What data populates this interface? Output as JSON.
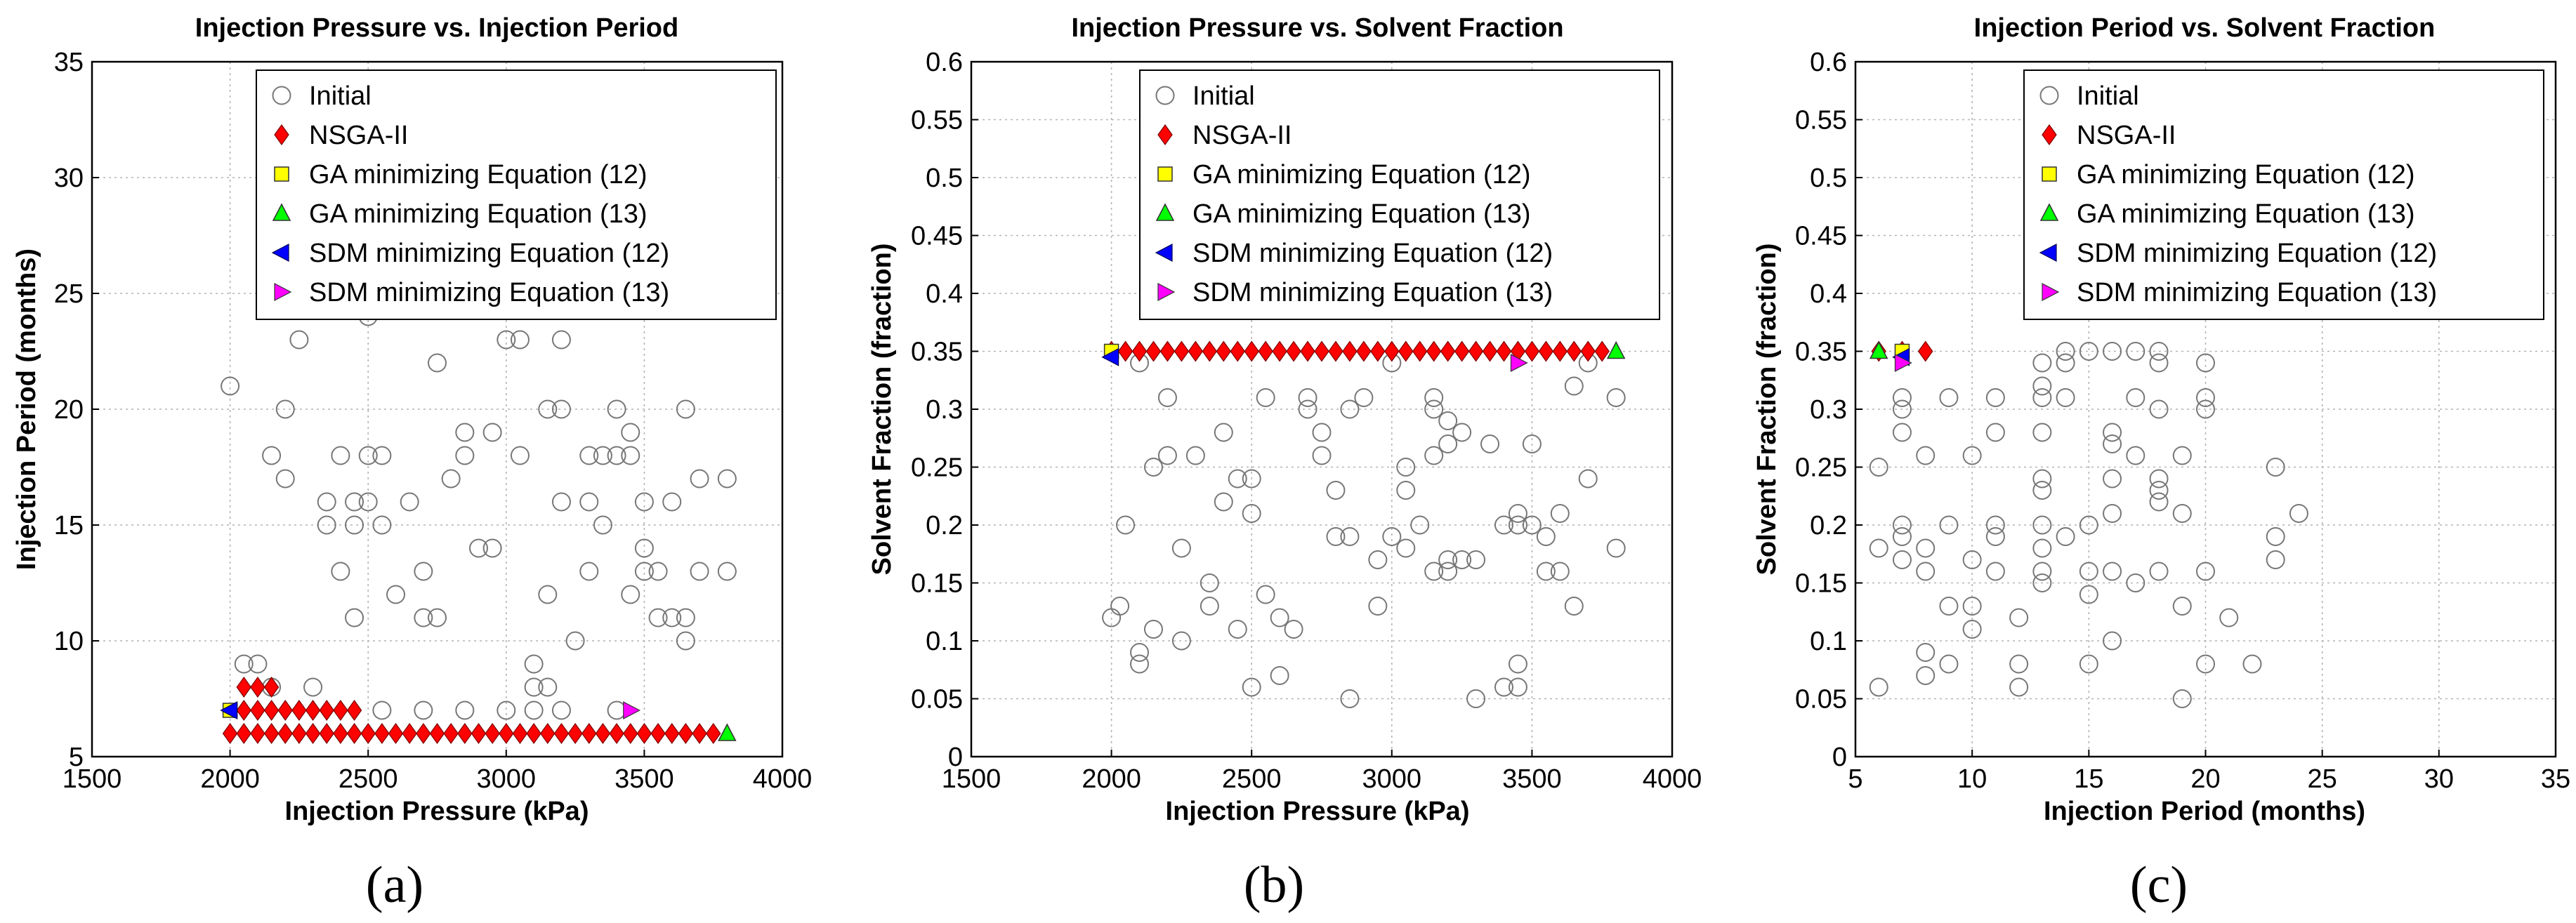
{
  "chart_data": [
    {
      "type": "scatter",
      "title": "Injection Pressure vs. Injection Period",
      "xlabel": "Injection Pressure (kPa)",
      "ylabel": "Injection Period (months)",
      "xlim": [
        1500,
        4000
      ],
      "ylim": [
        5,
        35
      ],
      "xticks": [
        "1500",
        "2000",
        "2500",
        "3000",
        "3500",
        "4000"
      ],
      "yticks": [
        "5",
        "10",
        "15",
        "20",
        "25",
        "30",
        "35"
      ],
      "panel_label": "(a)",
      "series": [
        {
          "name": "Initial",
          "x": [
            2000,
            2050,
            2100,
            2150,
            2150,
            2200,
            2200,
            2250,
            2300,
            2350,
            2350,
            2400,
            2400,
            2450,
            2450,
            2450,
            2500,
            2500,
            2500,
            2550,
            2550,
            2600,
            2650,
            2700,
            2700,
            2750,
            2750,
            2800,
            2850,
            2850,
            2900,
            2950,
            2950,
            3000,
            3050,
            3050,
            3100,
            3100,
            3150,
            3150,
            3150,
            3200,
            3200,
            3200,
            3250,
            3300,
            3300,
            3300,
            3350,
            3350,
            3400,
            3400,
            3450,
            3450,
            3450,
            3500,
            3500,
            3500,
            3550,
            3550,
            3600,
            3600,
            3650,
            3650,
            3650,
            3700,
            3700,
            3800,
            3800,
            2550,
            2700,
            2850,
            3000,
            3100,
            3200,
            3400
          ],
          "y": [
            21,
            9,
            9,
            18,
            8,
            20,
            17,
            23,
            8,
            16,
            15,
            18,
            13,
            16,
            15,
            11,
            24,
            18,
            16,
            18,
            15,
            12,
            16,
            13,
            11,
            22,
            11,
            17,
            19,
            18,
            14,
            19,
            14,
            23,
            23,
            18,
            7,
            8,
            20,
            12,
            8,
            20,
            23,
            16,
            10,
            18,
            16,
            13,
            18,
            15,
            18,
            20,
            19,
            18,
            12,
            16,
            14,
            13,
            13,
            11,
            16,
            11,
            20,
            11,
            10,
            17,
            13,
            17,
            13,
            7,
            7,
            7,
            7,
            9,
            7,
            7
          ]
        },
        {
          "name": "NSGA-II",
          "x": [
            2000,
            2050,
            2100,
            2150,
            2200,
            2250,
            2300,
            2350,
            2400,
            2450,
            2500,
            2550,
            2600,
            2650,
            2700,
            2750,
            2800,
            2850,
            2900,
            2950,
            3000,
            3050,
            3100,
            3150,
            3200,
            3250,
            3300,
            3350,
            3400,
            3450,
            3500,
            3550,
            3600,
            3650,
            3700,
            3750,
            2050,
            2100,
            2150,
            2200,
            2250,
            2300,
            2350,
            2400,
            2450,
            2050,
            2100,
            2150
          ],
          "y": [
            6,
            6,
            6,
            6,
            6,
            6,
            6,
            6,
            6,
            6,
            6,
            6,
            6,
            6,
            6,
            6,
            6,
            6,
            6,
            6,
            6,
            6,
            6,
            6,
            6,
            6,
            6,
            6,
            6,
            6,
            6,
            6,
            6,
            6,
            6,
            6,
            7,
            7,
            7,
            7,
            7,
            7,
            7,
            7,
            7,
            8,
            8,
            8
          ]
        },
        {
          "name": "GA minimizing Equation (12)",
          "x": [
            2000
          ],
          "y": [
            7
          ]
        },
        {
          "name": "GA minimizing Equation (13)",
          "x": [
            3800
          ],
          "y": [
            6
          ]
        },
        {
          "name": "SDM minimizing Equation (12)",
          "x": [
            2000
          ],
          "y": [
            7
          ]
        },
        {
          "name": "SDM minimizing Equation (13)",
          "x": [
            3450
          ],
          "y": [
            7
          ]
        }
      ]
    },
    {
      "type": "scatter",
      "title": "Injection Pressure vs. Solvent Fraction",
      "xlabel": "Injection Pressure (kPa)",
      "ylabel": "Solvent Fraction (fraction)",
      "xlim": [
        1500,
        4000
      ],
      "ylim": [
        0,
        0.6
      ],
      "xticks": [
        "1500",
        "2000",
        "2500",
        "3000",
        "3500",
        "4000"
      ],
      "yticks": [
        "0",
        "0.05",
        "0.1",
        "0.15",
        "0.2",
        "0.25",
        "0.3",
        "0.35",
        "0.4",
        "0.45",
        "0.5",
        "0.55",
        "0.6"
      ],
      "panel_label": "(b)",
      "series": [
        {
          "name": "Initial",
          "x": [
            2000,
            2030,
            2050,
            2100,
            2100,
            2150,
            2150,
            2200,
            2200,
            2250,
            2300,
            2350,
            2350,
            2400,
            2400,
            2450,
            2450,
            2500,
            2500,
            2550,
            2550,
            2600,
            2650,
            2700,
            2700,
            2750,
            2750,
            2800,
            2800,
            2850,
            2850,
            2900,
            2950,
            3000,
            3000,
            3050,
            3050,
            3100,
            3150,
            3150,
            3150,
            3200,
            3200,
            3200,
            3250,
            3300,
            3300,
            3350,
            3400,
            3400,
            3450,
            3450,
            3450,
            3500,
            3500,
            3550,
            3550,
            3600,
            3600,
            3650,
            3650,
            3700,
            3700,
            3800,
            3800,
            2100,
            2250,
            2500,
            2600,
            2850,
            2950,
            3050,
            3150,
            3200,
            3250,
            3450
          ],
          "y": [
            0.12,
            0.13,
            0.2,
            0.08,
            0.34,
            0.25,
            0.11,
            0.26,
            0.31,
            0.1,
            0.26,
            0.15,
            0.13,
            0.28,
            0.22,
            0.24,
            0.11,
            0.24,
            0.21,
            0.31,
            0.14,
            0.12,
            0.11,
            0.31,
            0.3,
            0.28,
            0.26,
            0.23,
            0.19,
            0.3,
            0.19,
            0.31,
            0.13,
            0.34,
            0.19,
            0.25,
            0.23,
            0.2,
            0.31,
            0.26,
            0.16,
            0.29,
            0.27,
            0.16,
            0.28,
            0.17,
            0.05,
            0.27,
            0.2,
            0.06,
            0.21,
            0.2,
            0.08,
            0.27,
            0.2,
            0.19,
            0.16,
            0.21,
            0.16,
            0.32,
            0.13,
            0.34,
            0.24,
            0.31,
            0.18,
            0.09,
            0.18,
            0.06,
            0.07,
            0.05,
            0.17,
            0.18,
            0.3,
            0.17,
            0.17,
            0.06
          ]
        },
        {
          "name": "NSGA-II",
          "x": [
            2000,
            2050,
            2100,
            2150,
            2200,
            2250,
            2300,
            2350,
            2400,
            2450,
            2500,
            2550,
            2600,
            2650,
            2700,
            2750,
            2800,
            2850,
            2900,
            2950,
            3000,
            3050,
            3100,
            3150,
            3200,
            3250,
            3300,
            3350,
            3400,
            3450,
            3500,
            3550,
            3600,
            3650,
            3700,
            3750
          ],
          "y": [
            0.35,
            0.35,
            0.35,
            0.35,
            0.35,
            0.35,
            0.35,
            0.35,
            0.35,
            0.35,
            0.35,
            0.35,
            0.35,
            0.35,
            0.35,
            0.35,
            0.35,
            0.35,
            0.35,
            0.35,
            0.35,
            0.35,
            0.35,
            0.35,
            0.35,
            0.35,
            0.35,
            0.35,
            0.35,
            0.35,
            0.35,
            0.35,
            0.35,
            0.35,
            0.35,
            0.35
          ]
        },
        {
          "name": "GA minimizing Equation (12)",
          "x": [
            2000
          ],
          "y": [
            0.35
          ]
        },
        {
          "name": "GA minimizing Equation (13)",
          "x": [
            3800
          ],
          "y": [
            0.35
          ]
        },
        {
          "name": "SDM minimizing Equation (12)",
          "x": [
            2000
          ],
          "y": [
            0.345
          ]
        },
        {
          "name": "SDM minimizing Equation (13)",
          "x": [
            3450
          ],
          "y": [
            0.34
          ]
        }
      ]
    },
    {
      "type": "scatter",
      "title": "Injection Period vs. Solvent Fraction",
      "xlabel": "Injection Period (months)",
      "ylabel": "Solvent Fraction (fraction)",
      "xlim": [
        5,
        35
      ],
      "ylim": [
        0,
        0.6
      ],
      "xticks": [
        "5",
        "10",
        "15",
        "20",
        "25",
        "30",
        "35"
      ],
      "yticks": [
        "0",
        "0.05",
        "0.1",
        "0.15",
        "0.2",
        "0.25",
        "0.3",
        "0.35",
        "0.4",
        "0.45",
        "0.5",
        "0.55",
        "0.6"
      ],
      "panel_label": "(c)",
      "series": [
        {
          "name": "Initial",
          "x": [
            6,
            6,
            6,
            7,
            7,
            7,
            7,
            7,
            7,
            8,
            8,
            8,
            8,
            8,
            9,
            9,
            9,
            9,
            10,
            10,
            10,
            10,
            11,
            11,
            11,
            11,
            11,
            12,
            12,
            12,
            13,
            13,
            13,
            13,
            13,
            13,
            13,
            13,
            13,
            13,
            14,
            14,
            14,
            14,
            15,
            15,
            15,
            15,
            15,
            16,
            16,
            16,
            16,
            16,
            16,
            16,
            17,
            17,
            17,
            17,
            18,
            18,
            18,
            18,
            18,
            18,
            18,
            19,
            19,
            19,
            19,
            20,
            20,
            20,
            20,
            20,
            21,
            22,
            23,
            23,
            23,
            24
          ],
          "y": [
            0.25,
            0.18,
            0.06,
            0.31,
            0.3,
            0.28,
            0.2,
            0.19,
            0.17,
            0.26,
            0.18,
            0.16,
            0.09,
            0.07,
            0.31,
            0.2,
            0.13,
            0.08,
            0.26,
            0.17,
            0.13,
            0.11,
            0.31,
            0.28,
            0.2,
            0.19,
            0.16,
            0.12,
            0.08,
            0.06,
            0.34,
            0.32,
            0.31,
            0.28,
            0.24,
            0.23,
            0.2,
            0.18,
            0.16,
            0.15,
            0.35,
            0.34,
            0.31,
            0.19,
            0.35,
            0.2,
            0.16,
            0.14,
            0.08,
            0.35,
            0.28,
            0.27,
            0.24,
            0.21,
            0.16,
            0.1,
            0.35,
            0.31,
            0.26,
            0.15,
            0.35,
            0.34,
            0.3,
            0.24,
            0.23,
            0.22,
            0.16,
            0.26,
            0.21,
            0.13,
            0.05,
            0.34,
            0.31,
            0.3,
            0.16,
            0.08,
            0.12,
            0.08,
            0.25,
            0.19,
            0.17,
            0.21
          ]
        },
        {
          "name": "NSGA-II",
          "x": [
            6,
            7,
            8
          ],
          "y": [
            0.35,
            0.35,
            0.35
          ]
        },
        {
          "name": "GA minimizing Equation (12)",
          "x": [
            7
          ],
          "y": [
            0.35
          ]
        },
        {
          "name": "GA minimizing Equation (13)",
          "x": [
            6
          ],
          "y": [
            0.35
          ]
        },
        {
          "name": "SDM minimizing Equation (12)",
          "x": [
            7
          ],
          "y": [
            0.345
          ]
        },
        {
          "name": "SDM minimizing Equation (13)",
          "x": [
            7
          ],
          "y": [
            0.34
          ]
        }
      ]
    }
  ],
  "legend": {
    "position": "top-right",
    "entries": [
      {
        "label": "Initial",
        "marker": "circle-open",
        "color": "#777777"
      },
      {
        "label": "NSGA-II",
        "marker": "diamond",
        "color": "#ff0000"
      },
      {
        "label": "GA minimizing Equation (12)",
        "marker": "square",
        "color": "#ffff00"
      },
      {
        "label": "GA minimizing Equation (13)",
        "marker": "triangle-up",
        "color": "#00ff00"
      },
      {
        "label": "SDM minimizing Equation (12)",
        "marker": "triangle-left",
        "color": "#0000ff"
      },
      {
        "label": "SDM minimizing Equation (13)",
        "marker": "triangle-right",
        "color": "#ff00ff"
      }
    ]
  }
}
